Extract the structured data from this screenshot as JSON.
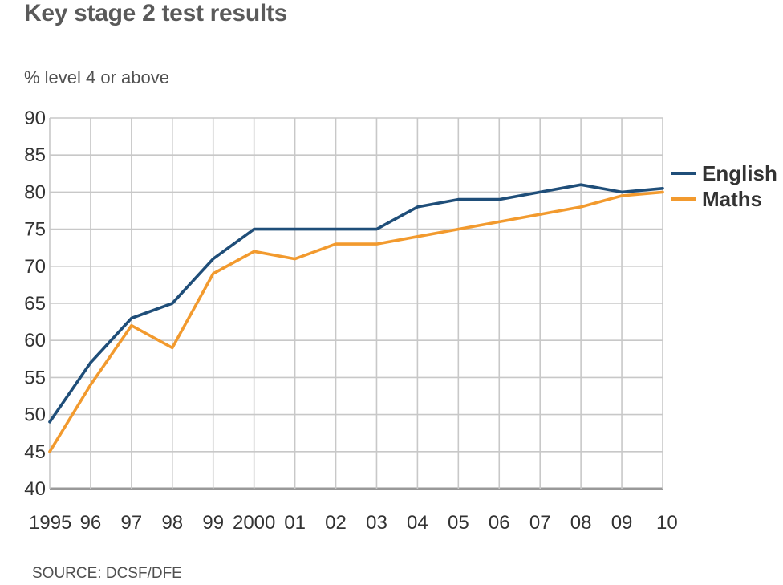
{
  "title": "Key stage 2 test results",
  "subtitle": "% level 4 or above",
  "source": "SOURCE: DCSF/DFE",
  "chart_data": {
    "type": "line",
    "x": [
      1995,
      1996,
      1997,
      1998,
      1999,
      2000,
      2001,
      2002,
      2003,
      2004,
      2005,
      2006,
      2007,
      2008,
      2009,
      2010
    ],
    "x_tick_labels": [
      "1995",
      "96",
      "97",
      "98",
      "99",
      "2000",
      "01",
      "02",
      "03",
      "04",
      "05",
      "06",
      "07",
      "08",
      "09",
      "10"
    ],
    "y_ticks": [
      "90",
      "85",
      "80",
      "75",
      "70",
      "65",
      "60",
      "55",
      "50",
      "45",
      "40"
    ],
    "ylim": [
      40,
      90
    ],
    "grid": true,
    "legend_placement": "right",
    "series": [
      {
        "name": "English",
        "color": "#1f4e79",
        "values": [
          49,
          57,
          63,
          65,
          71,
          75,
          75,
          75,
          75,
          78,
          79,
          79,
          80,
          81,
          80,
          80.5
        ]
      },
      {
        "name": "Maths",
        "color": "#f29a2e",
        "values": [
          45,
          54,
          62,
          59,
          69,
          72,
          71,
          73,
          73,
          74,
          75,
          76,
          77,
          78,
          79.5,
          80
        ]
      }
    ]
  }
}
